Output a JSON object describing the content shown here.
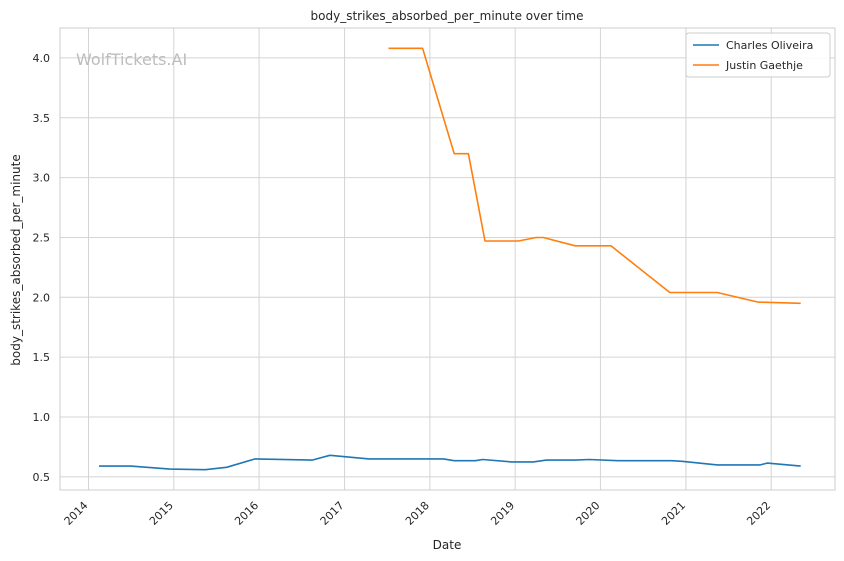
{
  "chart_data": {
    "type": "line",
    "title": "body_strikes_absorbed_per_minute over time",
    "xlabel": "Date",
    "ylabel": "body_strikes_absorbed_per_minute",
    "watermark": "WolfTickets.AI",
    "x_ticks": [
      "2014",
      "2015",
      "2016",
      "2017",
      "2018",
      "2019",
      "2020",
      "2021",
      "2022"
    ],
    "y_ticks": [
      "0.5",
      "1.0",
      "1.5",
      "2.0",
      "2.5",
      "3.0",
      "3.5",
      "4.0"
    ],
    "xlim": [
      "2013-09-01",
      "2022-10-01"
    ],
    "ylim": [
      0.39,
      4.25
    ],
    "grid": true,
    "legend_position": "top-right",
    "series": [
      {
        "name": "Charles Oliveira",
        "color": "#1f77b4",
        "points": [
          [
            "2014-02-15",
            0.59
          ],
          [
            "2014-07-01",
            0.59
          ],
          [
            "2014-12-15",
            0.565
          ],
          [
            "2015-05-15",
            0.56
          ],
          [
            "2015-08-15",
            0.58
          ],
          [
            "2015-12-15",
            0.65
          ],
          [
            "2016-08-15",
            0.64
          ],
          [
            "2016-10-30",
            0.68
          ],
          [
            "2017-04-15",
            0.65
          ],
          [
            "2018-03-01",
            0.65
          ],
          [
            "2018-04-15",
            0.635
          ],
          [
            "2018-07-15",
            0.635
          ],
          [
            "2018-08-15",
            0.645
          ],
          [
            "2018-12-15",
            0.625
          ],
          [
            "2019-03-20",
            0.625
          ],
          [
            "2019-05-15",
            0.64
          ],
          [
            "2019-09-15",
            0.64
          ],
          [
            "2019-11-15",
            0.645
          ],
          [
            "2020-03-15",
            0.635
          ],
          [
            "2020-10-30",
            0.635
          ],
          [
            "2020-12-15",
            0.63
          ],
          [
            "2021-05-15",
            0.6
          ],
          [
            "2021-11-15",
            0.6
          ],
          [
            "2021-12-15",
            0.615
          ],
          [
            "2022-05-07",
            0.59
          ]
        ]
      },
      {
        "name": "Justin Gaethje",
        "color": "#ff7f0e",
        "points": [
          [
            "2017-07-08",
            4.08
          ],
          [
            "2017-12-01",
            4.08
          ],
          [
            "2018-04-15",
            3.2
          ],
          [
            "2018-06-15",
            3.2
          ],
          [
            "2018-08-25",
            2.47
          ],
          [
            "2019-01-15",
            2.47
          ],
          [
            "2019-04-01",
            2.5
          ],
          [
            "2019-05-01",
            2.5
          ],
          [
            "2019-09-15",
            2.43
          ],
          [
            "2020-02-15",
            2.43
          ],
          [
            "2020-05-09",
            2.3
          ],
          [
            "2020-10-24",
            2.04
          ],
          [
            "2021-05-15",
            2.04
          ],
          [
            "2021-11-06",
            1.96
          ],
          [
            "2022-05-07",
            1.95
          ]
        ]
      }
    ]
  }
}
